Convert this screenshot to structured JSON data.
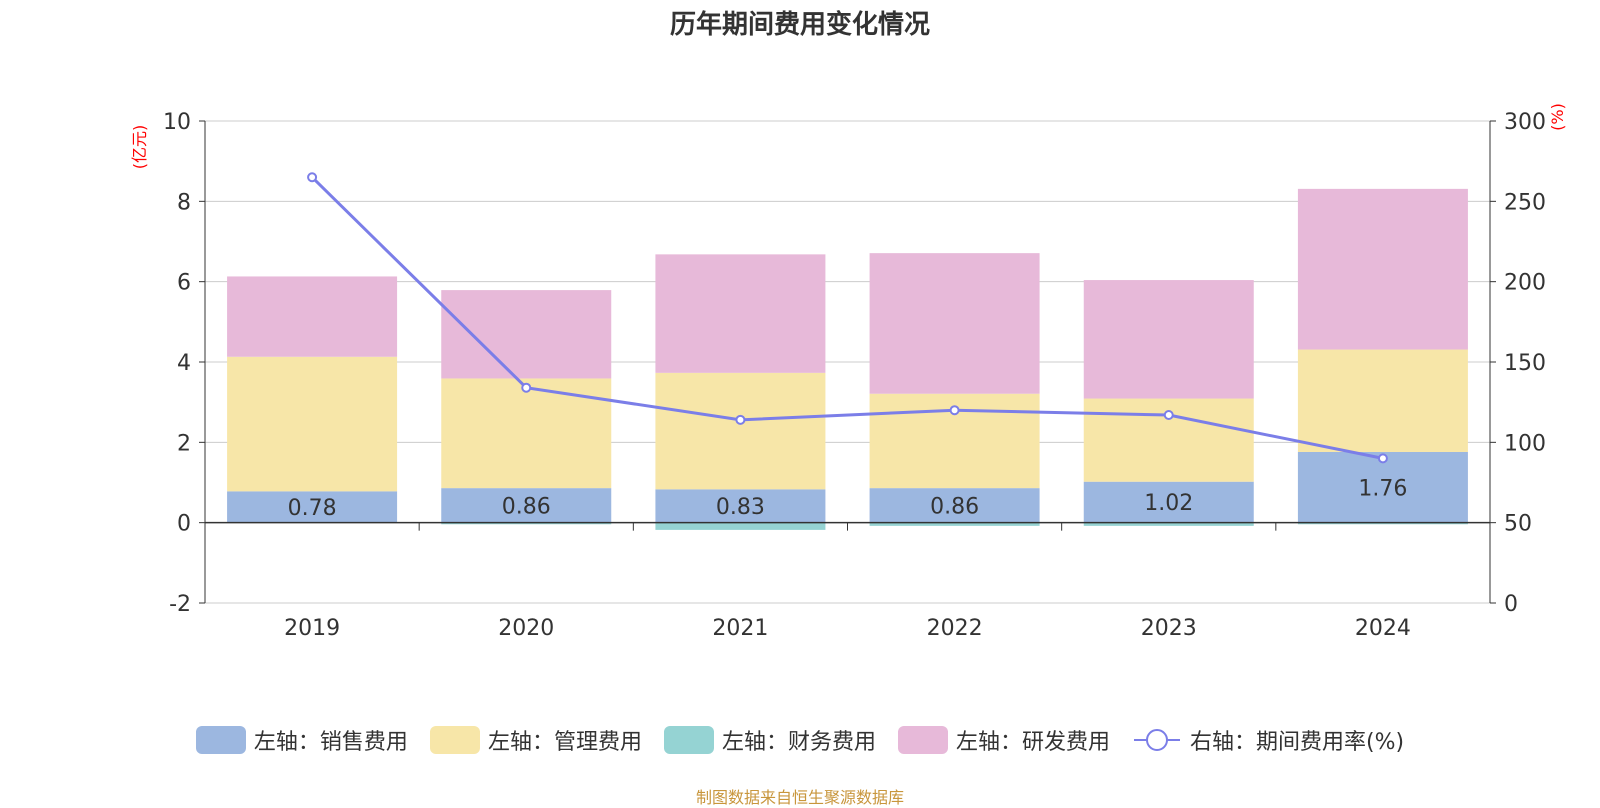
{
  "chart_data": {
    "type": "bar",
    "title": "历年期间费用变化情况",
    "categories": [
      "2019",
      "2020",
      "2021",
      "2022",
      "2023",
      "2024"
    ],
    "stacked": true,
    "y_left": {
      "label": "(亿元)",
      "ylim": [
        -2,
        10
      ],
      "ticks": [
        -2,
        0,
        2,
        4,
        6,
        8,
        10
      ]
    },
    "y_right": {
      "label": "(%)",
      "ylim": [
        0,
        300
      ],
      "ticks": [
        0,
        50,
        100,
        150,
        200,
        250,
        300
      ]
    },
    "grid": true,
    "legend_position": "bottom",
    "series": [
      {
        "name": "左轴：销售费用",
        "type": "bar",
        "axis": "left",
        "color": "#9cb7e0",
        "values": [
          0.78,
          0.86,
          0.83,
          0.86,
          1.02,
          1.76
        ],
        "labels": [
          "0.78",
          "0.86",
          "0.83",
          "0.86",
          "1.02",
          "1.76"
        ]
      },
      {
        "name": "左轴：管理费用",
        "type": "bar",
        "axis": "left",
        "color": "#f7e6a8",
        "values": [
          3.35,
          2.73,
          2.9,
          2.35,
          2.07,
          2.55
        ]
      },
      {
        "name": "左轴：财务费用",
        "type": "bar",
        "axis": "left",
        "color": "#95d3d3",
        "values": [
          0.0,
          -0.04,
          -0.18,
          -0.08,
          -0.08,
          -0.04
        ]
      },
      {
        "name": "左轴：研发费用",
        "type": "bar",
        "axis": "left",
        "color": "#e7b9d9",
        "values": [
          2.0,
          2.2,
          2.95,
          3.5,
          2.95,
          4.0
        ]
      },
      {
        "name": "右轴：期间费用率(%)",
        "type": "line",
        "axis": "right",
        "color": "#7b7ee8",
        "values": [
          265,
          134,
          114,
          120,
          117,
          90
        ]
      }
    ]
  },
  "source_note": "制图数据来自恒生聚源数据库",
  "colors": {
    "axis_label": "#ff0000",
    "grid": "#cccccc",
    "text": "#333333"
  }
}
